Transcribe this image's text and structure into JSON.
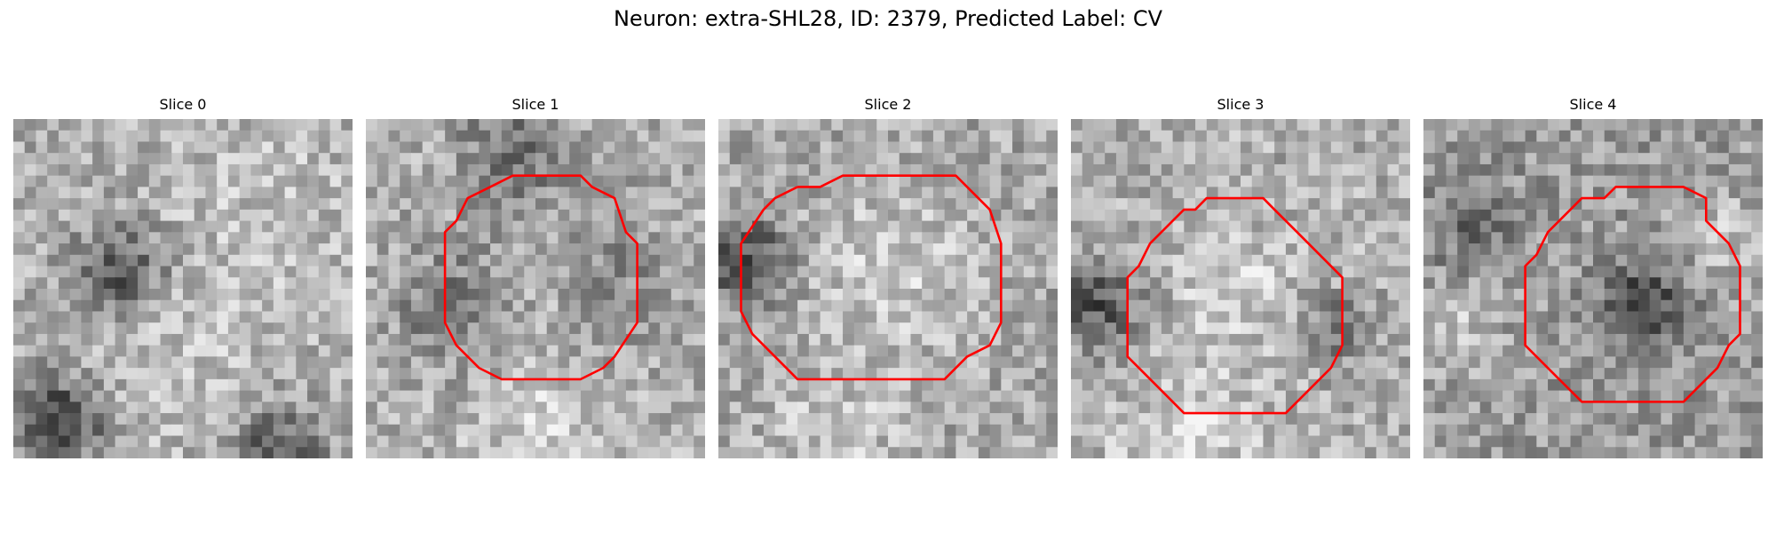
{
  "figure": {
    "title": "Neuron: extra-SHL28, ID: 2379, Predicted Label: CV"
  },
  "colors": {
    "outline": "#ff0000"
  },
  "panels": [
    {
      "title": "Slice 0",
      "has_outline": false,
      "seed": 11
    },
    {
      "title": "Slice 1",
      "has_outline": true,
      "seed": 23
    },
    {
      "title": "Slice 2",
      "has_outline": true,
      "seed": 37
    },
    {
      "title": "Slice 3",
      "has_outline": true,
      "seed": 41
    },
    {
      "title": "Slice 4",
      "has_outline": true,
      "seed": 59
    }
  ]
}
